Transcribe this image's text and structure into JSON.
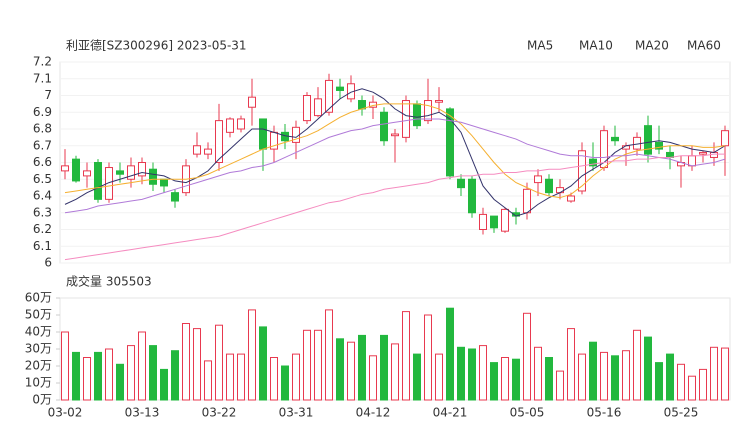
{
  "chart_data": [
    {
      "type": "candlestick",
      "title": "利亚德[SZ300296] 2023-05-31",
      "categories": [
        "03-02",
        null,
        null,
        null,
        null,
        null,
        null,
        "03-13",
        null,
        null,
        null,
        null,
        null,
        null,
        "03-22",
        null,
        null,
        null,
        null,
        null,
        null,
        "03-31",
        null,
        null,
        null,
        null,
        null,
        null,
        "04-12",
        null,
        null,
        null,
        null,
        null,
        null,
        "04-21",
        null,
        null,
        null,
        null,
        null,
        null,
        "05-05",
        null,
        null,
        null,
        null,
        null,
        null,
        "05-16",
        null,
        null,
        null,
        null,
        null,
        null,
        "05-25",
        null,
        null,
        null,
        null
      ],
      "open": [
        6.55,
        6.62,
        6.52,
        6.6,
        6.38,
        6.55,
        6.5,
        6.52,
        6.56,
        6.5,
        6.42,
        6.42,
        6.65,
        6.65,
        6.6,
        6.78,
        6.8,
        6.93,
        6.86,
        6.68,
        6.78,
        6.72,
        6.85,
        6.88,
        6.9,
        7.05,
        6.98,
        6.97,
        6.93,
        6.9,
        6.76,
        6.75,
        6.95,
        6.85,
        6.96,
        6.92,
        6.5,
        6.5,
        6.2,
        6.28,
        6.19,
        6.3,
        6.3,
        6.48,
        6.5,
        6.42,
        6.37,
        6.43,
        6.62,
        6.57,
        6.75,
        6.68,
        6.68,
        6.82,
        6.72,
        6.66,
        6.58,
        6.58,
        6.65,
        6.63,
        6.7
      ],
      "high": [
        6.68,
        6.64,
        6.6,
        6.62,
        6.6,
        6.6,
        6.63,
        6.63,
        6.6,
        6.5,
        6.44,
        6.62,
        6.78,
        6.72,
        6.95,
        6.87,
        6.88,
        7.1,
        6.86,
        6.82,
        6.83,
        6.85,
        7.02,
        7.05,
        7.13,
        7.1,
        7.12,
        7.0,
        7.0,
        6.93,
        6.8,
        7.0,
        6.97,
        7.1,
        7.05,
        6.93,
        6.53,
        6.52,
        6.33,
        6.28,
        6.33,
        6.33,
        6.48,
        6.56,
        6.53,
        6.5,
        6.42,
        6.72,
        6.72,
        6.82,
        6.82,
        6.72,
        6.78,
        6.88,
        6.82,
        6.7,
        6.64,
        6.7,
        6.67,
        6.72,
        6.82
      ],
      "low": [
        6.5,
        6.48,
        6.45,
        6.36,
        6.36,
        6.48,
        6.45,
        6.47,
        6.43,
        6.42,
        6.33,
        6.4,
        6.63,
        6.62,
        6.55,
        6.75,
        6.78,
        6.82,
        6.55,
        6.6,
        6.68,
        6.62,
        6.83,
        6.87,
        6.88,
        6.98,
        6.96,
        6.88,
        6.86,
        6.7,
        6.6,
        6.72,
        6.8,
        6.83,
        6.9,
        6.5,
        6.4,
        6.27,
        6.17,
        6.18,
        6.18,
        6.23,
        6.26,
        6.4,
        6.4,
        6.38,
        6.36,
        6.41,
        6.55,
        6.55,
        6.7,
        6.58,
        6.64,
        6.6,
        6.65,
        6.56,
        6.45,
        6.55,
        6.6,
        6.58,
        6.52
      ],
      "close": [
        6.58,
        6.49,
        6.55,
        6.38,
        6.57,
        6.53,
        6.58,
        6.6,
        6.47,
        6.46,
        6.37,
        6.58,
        6.7,
        6.68,
        6.85,
        6.86,
        6.86,
        6.99,
        6.68,
        6.78,
        6.73,
        6.81,
        7.0,
        6.98,
        7.09,
        7.03,
        7.07,
        6.92,
        6.96,
        6.73,
        6.77,
        6.97,
        6.82,
        6.97,
        6.97,
        6.52,
        6.45,
        6.3,
        6.29,
        6.21,
        6.32,
        6.28,
        6.44,
        6.52,
        6.42,
        6.45,
        6.4,
        6.67,
        6.58,
        6.79,
        6.73,
        6.7,
        6.75,
        6.65,
        6.68,
        6.63,
        6.6,
        6.64,
        6.66,
        6.66,
        6.79
      ],
      "up_color": "#e8394f",
      "down_color": "#22b83e",
      "series": [
        {
          "name": "MA5",
          "color": "#33336b",
          "values": [
            6.35,
            6.38,
            6.42,
            6.45,
            6.48,
            6.5,
            6.52,
            6.54,
            6.53,
            6.52,
            6.49,
            6.48,
            6.51,
            6.55,
            6.62,
            6.68,
            6.74,
            6.8,
            6.8,
            6.78,
            6.76,
            6.75,
            6.8,
            6.86,
            6.92,
            6.98,
            7.02,
            7.04,
            7.02,
            6.98,
            6.92,
            6.88,
            6.87,
            6.88,
            6.9,
            6.86,
            6.78,
            6.62,
            6.46,
            6.38,
            6.33,
            6.28,
            6.3,
            6.35,
            6.39,
            6.42,
            6.46,
            6.52,
            6.56,
            6.6,
            6.66,
            6.7,
            6.71,
            6.72,
            6.73,
            6.72,
            6.7,
            6.68,
            6.67,
            6.66,
            6.7
          ]
        },
        {
          "name": "MA10",
          "color": "#f5b030",
          "values": [
            6.42,
            6.43,
            6.44,
            6.45,
            6.46,
            6.47,
            6.48,
            6.49,
            6.5,
            6.5,
            6.5,
            6.5,
            6.51,
            6.53,
            6.56,
            6.59,
            6.62,
            6.65,
            6.68,
            6.7,
            6.72,
            6.74,
            6.76,
            6.79,
            6.83,
            6.87,
            6.9,
            6.92,
            6.94,
            6.95,
            6.95,
            6.95,
            6.95,
            6.94,
            6.92,
            6.88,
            6.83,
            6.76,
            6.68,
            6.6,
            6.53,
            6.48,
            6.45,
            6.42,
            6.4,
            6.39,
            6.41,
            6.46,
            6.52,
            6.57,
            6.62,
            6.65,
            6.67,
            6.68,
            6.69,
            6.7,
            6.7,
            6.7,
            6.69,
            6.69,
            6.7
          ]
        },
        {
          "name": "MA20",
          "color": "#b07ad8",
          "values": [
            6.3,
            6.31,
            6.32,
            6.34,
            6.35,
            6.36,
            6.37,
            6.38,
            6.4,
            6.42,
            6.44,
            6.46,
            6.48,
            6.5,
            6.52,
            6.54,
            6.55,
            6.57,
            6.58,
            6.6,
            6.63,
            6.66,
            6.69,
            6.72,
            6.75,
            6.77,
            6.79,
            6.8,
            6.82,
            6.83,
            6.84,
            6.85,
            6.86,
            6.86,
            6.86,
            6.85,
            6.84,
            6.82,
            6.8,
            6.78,
            6.76,
            6.74,
            6.71,
            6.69,
            6.67,
            6.65,
            6.64,
            6.64,
            6.63,
            6.63,
            6.64,
            6.64,
            6.65,
            6.64,
            6.63,
            6.62,
            6.6,
            6.58,
            6.59,
            6.6,
            6.62
          ]
        },
        {
          "name": "MA60",
          "color": "#f58cc0",
          "values": [
            6.02,
            6.03,
            6.04,
            6.05,
            6.06,
            6.07,
            6.08,
            6.09,
            6.1,
            6.11,
            6.12,
            6.13,
            6.14,
            6.15,
            6.16,
            6.18,
            6.2,
            6.22,
            6.24,
            6.26,
            6.28,
            6.3,
            6.32,
            6.34,
            6.36,
            6.37,
            6.39,
            6.41,
            6.42,
            6.44,
            6.45,
            6.46,
            6.47,
            6.48,
            6.5,
            6.51,
            6.52,
            6.52,
            6.53,
            6.53,
            6.54,
            6.54,
            6.55,
            6.55,
            6.56,
            6.56,
            6.57,
            6.58,
            6.59,
            6.6,
            6.61,
            6.61,
            6.62,
            6.62,
            6.63,
            6.63,
            6.64,
            6.64,
            6.64,
            6.65,
            6.65
          ]
        }
      ],
      "ylim": [
        6,
        7.2
      ],
      "yticks": [
        6,
        6.1,
        6.2,
        6.3,
        6.4,
        6.5,
        6.6,
        6.7,
        6.8,
        6.9,
        7,
        7.1,
        7.2
      ]
    },
    {
      "type": "bar",
      "title": "成交量 305503",
      "values": [
        40,
        28,
        25,
        28,
        30,
        21,
        32,
        40,
        32,
        18,
        29,
        45,
        42,
        23,
        44,
        27,
        27,
        53,
        43,
        25,
        20,
        27,
        41,
        41,
        53,
        36,
        34,
        38,
        26,
        38,
        33,
        52,
        27,
        50,
        27,
        54,
        31,
        30,
        32,
        22,
        25,
        24,
        51,
        31,
        25,
        17,
        42,
        27,
        34,
        28,
        26,
        29,
        41,
        37,
        22,
        27,
        21,
        14,
        18,
        31,
        30.55
      ],
      "ylim": [
        0,
        60
      ],
      "yticks": [
        {
          "value": 0,
          "label": "0万"
        },
        {
          "value": 10,
          "label": "10万"
        },
        {
          "value": 20,
          "label": "20万"
        },
        {
          "value": 30,
          "label": "30万"
        },
        {
          "value": 40,
          "label": "40万"
        },
        {
          "value": 50,
          "label": "50万"
        },
        {
          "value": 60,
          "label": "60万"
        }
      ]
    }
  ]
}
